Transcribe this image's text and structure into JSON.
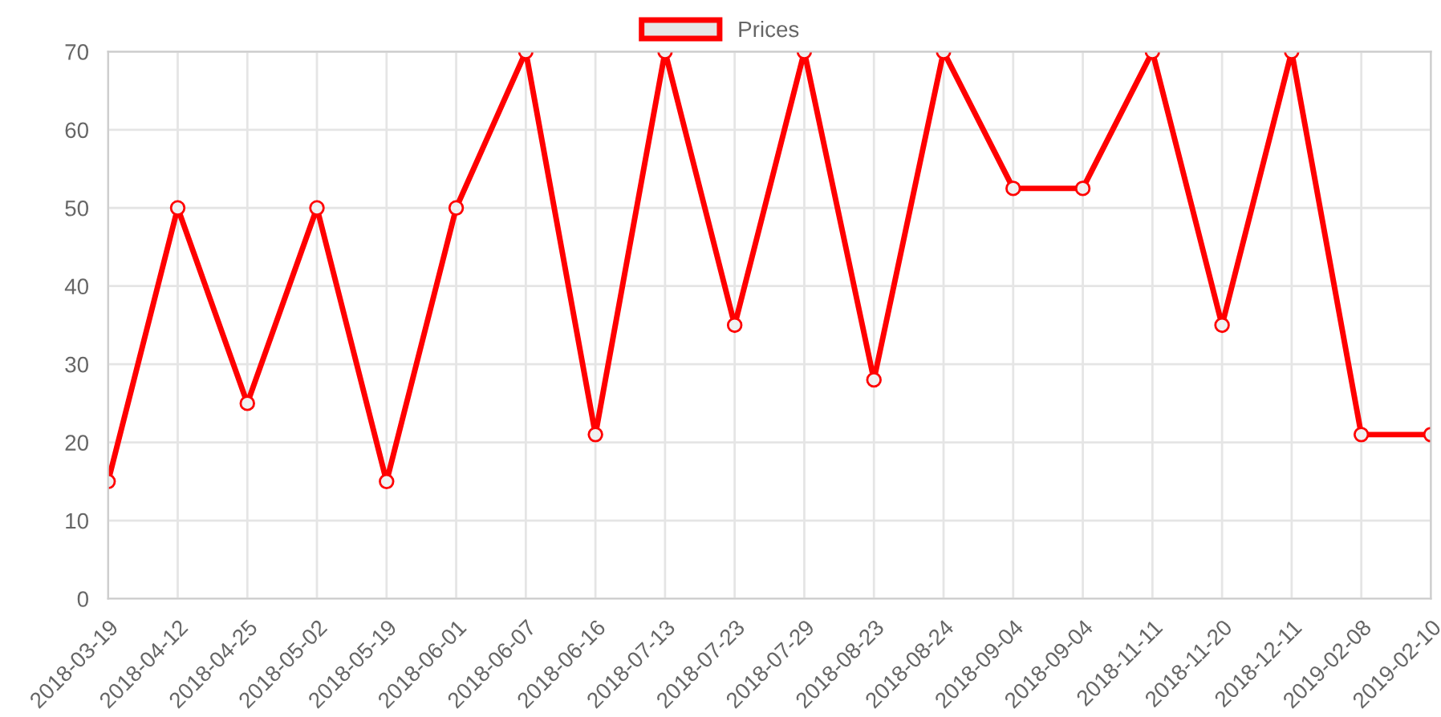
{
  "chart_data": {
    "type": "line",
    "categories": [
      "2018-03-19",
      "2018-04-12",
      "2018-04-25",
      "2018-05-02",
      "2018-05-19",
      "2018-06-01",
      "2018-06-07",
      "2018-06-16",
      "2018-07-13",
      "2018-07-23",
      "2018-07-29",
      "2018-08-23",
      "2018-08-24",
      "2018-09-04",
      "2018-09-04",
      "2018-11-11",
      "2018-11-20",
      "2018-12-11",
      "2019-02-08",
      "2019-02-10"
    ],
    "series": [
      {
        "name": "Prices",
        "color": "#ff0000",
        "values": [
          15,
          50,
          25,
          50,
          15,
          50,
          70,
          21,
          70,
          35,
          70,
          28,
          70,
          52.5,
          52.5,
          70,
          35,
          70,
          21,
          21
        ]
      }
    ],
    "ylim": [
      0,
      70
    ],
    "yticks": [
      0,
      10,
      20,
      30,
      40,
      50,
      60,
      70
    ],
    "grid": true,
    "legend": "top",
    "marker": "circle",
    "line_style": "solid"
  }
}
